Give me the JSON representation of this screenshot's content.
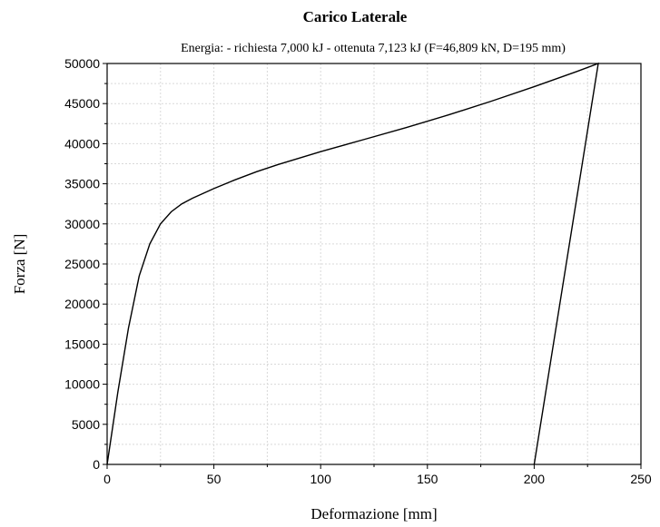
{
  "chart_data": {
    "type": "line",
    "title": "Carico Laterale",
    "subtitle": "Energia: - richiesta 7,000 kJ - ottenuta 7,123 kJ (F=46,809 kN, D=195 mm)",
    "xlabel": "Deformazione [mm]",
    "ylabel": "Forza [N]",
    "xlim": [
      0,
      250
    ],
    "ylim": [
      0,
      50000
    ],
    "xticks": [
      0,
      50,
      100,
      150,
      200,
      250
    ],
    "yticks": [
      0,
      5000,
      10000,
      15000,
      20000,
      25000,
      30000,
      35000,
      40000,
      45000,
      50000
    ],
    "xtick_labels": [
      "0",
      "50",
      "100",
      "150",
      "200",
      "250"
    ],
    "ytick_labels": [
      "0",
      "5000",
      "10000",
      "15000",
      "20000",
      "25000",
      "30000",
      "35000",
      "40000",
      "45000",
      "50000"
    ],
    "grid": true,
    "series": [
      {
        "x": [
          0,
          5,
          10,
          15,
          20,
          25,
          30,
          35,
          40,
          50,
          60,
          70,
          80,
          90,
          100,
          120,
          140,
          160,
          180,
          200,
          220,
          230,
          200
        ],
        "y": [
          0,
          9000,
          17000,
          23500,
          27500,
          30000,
          31500,
          32500,
          33200,
          34400,
          35500,
          36500,
          37400,
          38200,
          39000,
          40500,
          42000,
          43600,
          45300,
          47100,
          49000,
          50000,
          0
        ]
      }
    ]
  }
}
